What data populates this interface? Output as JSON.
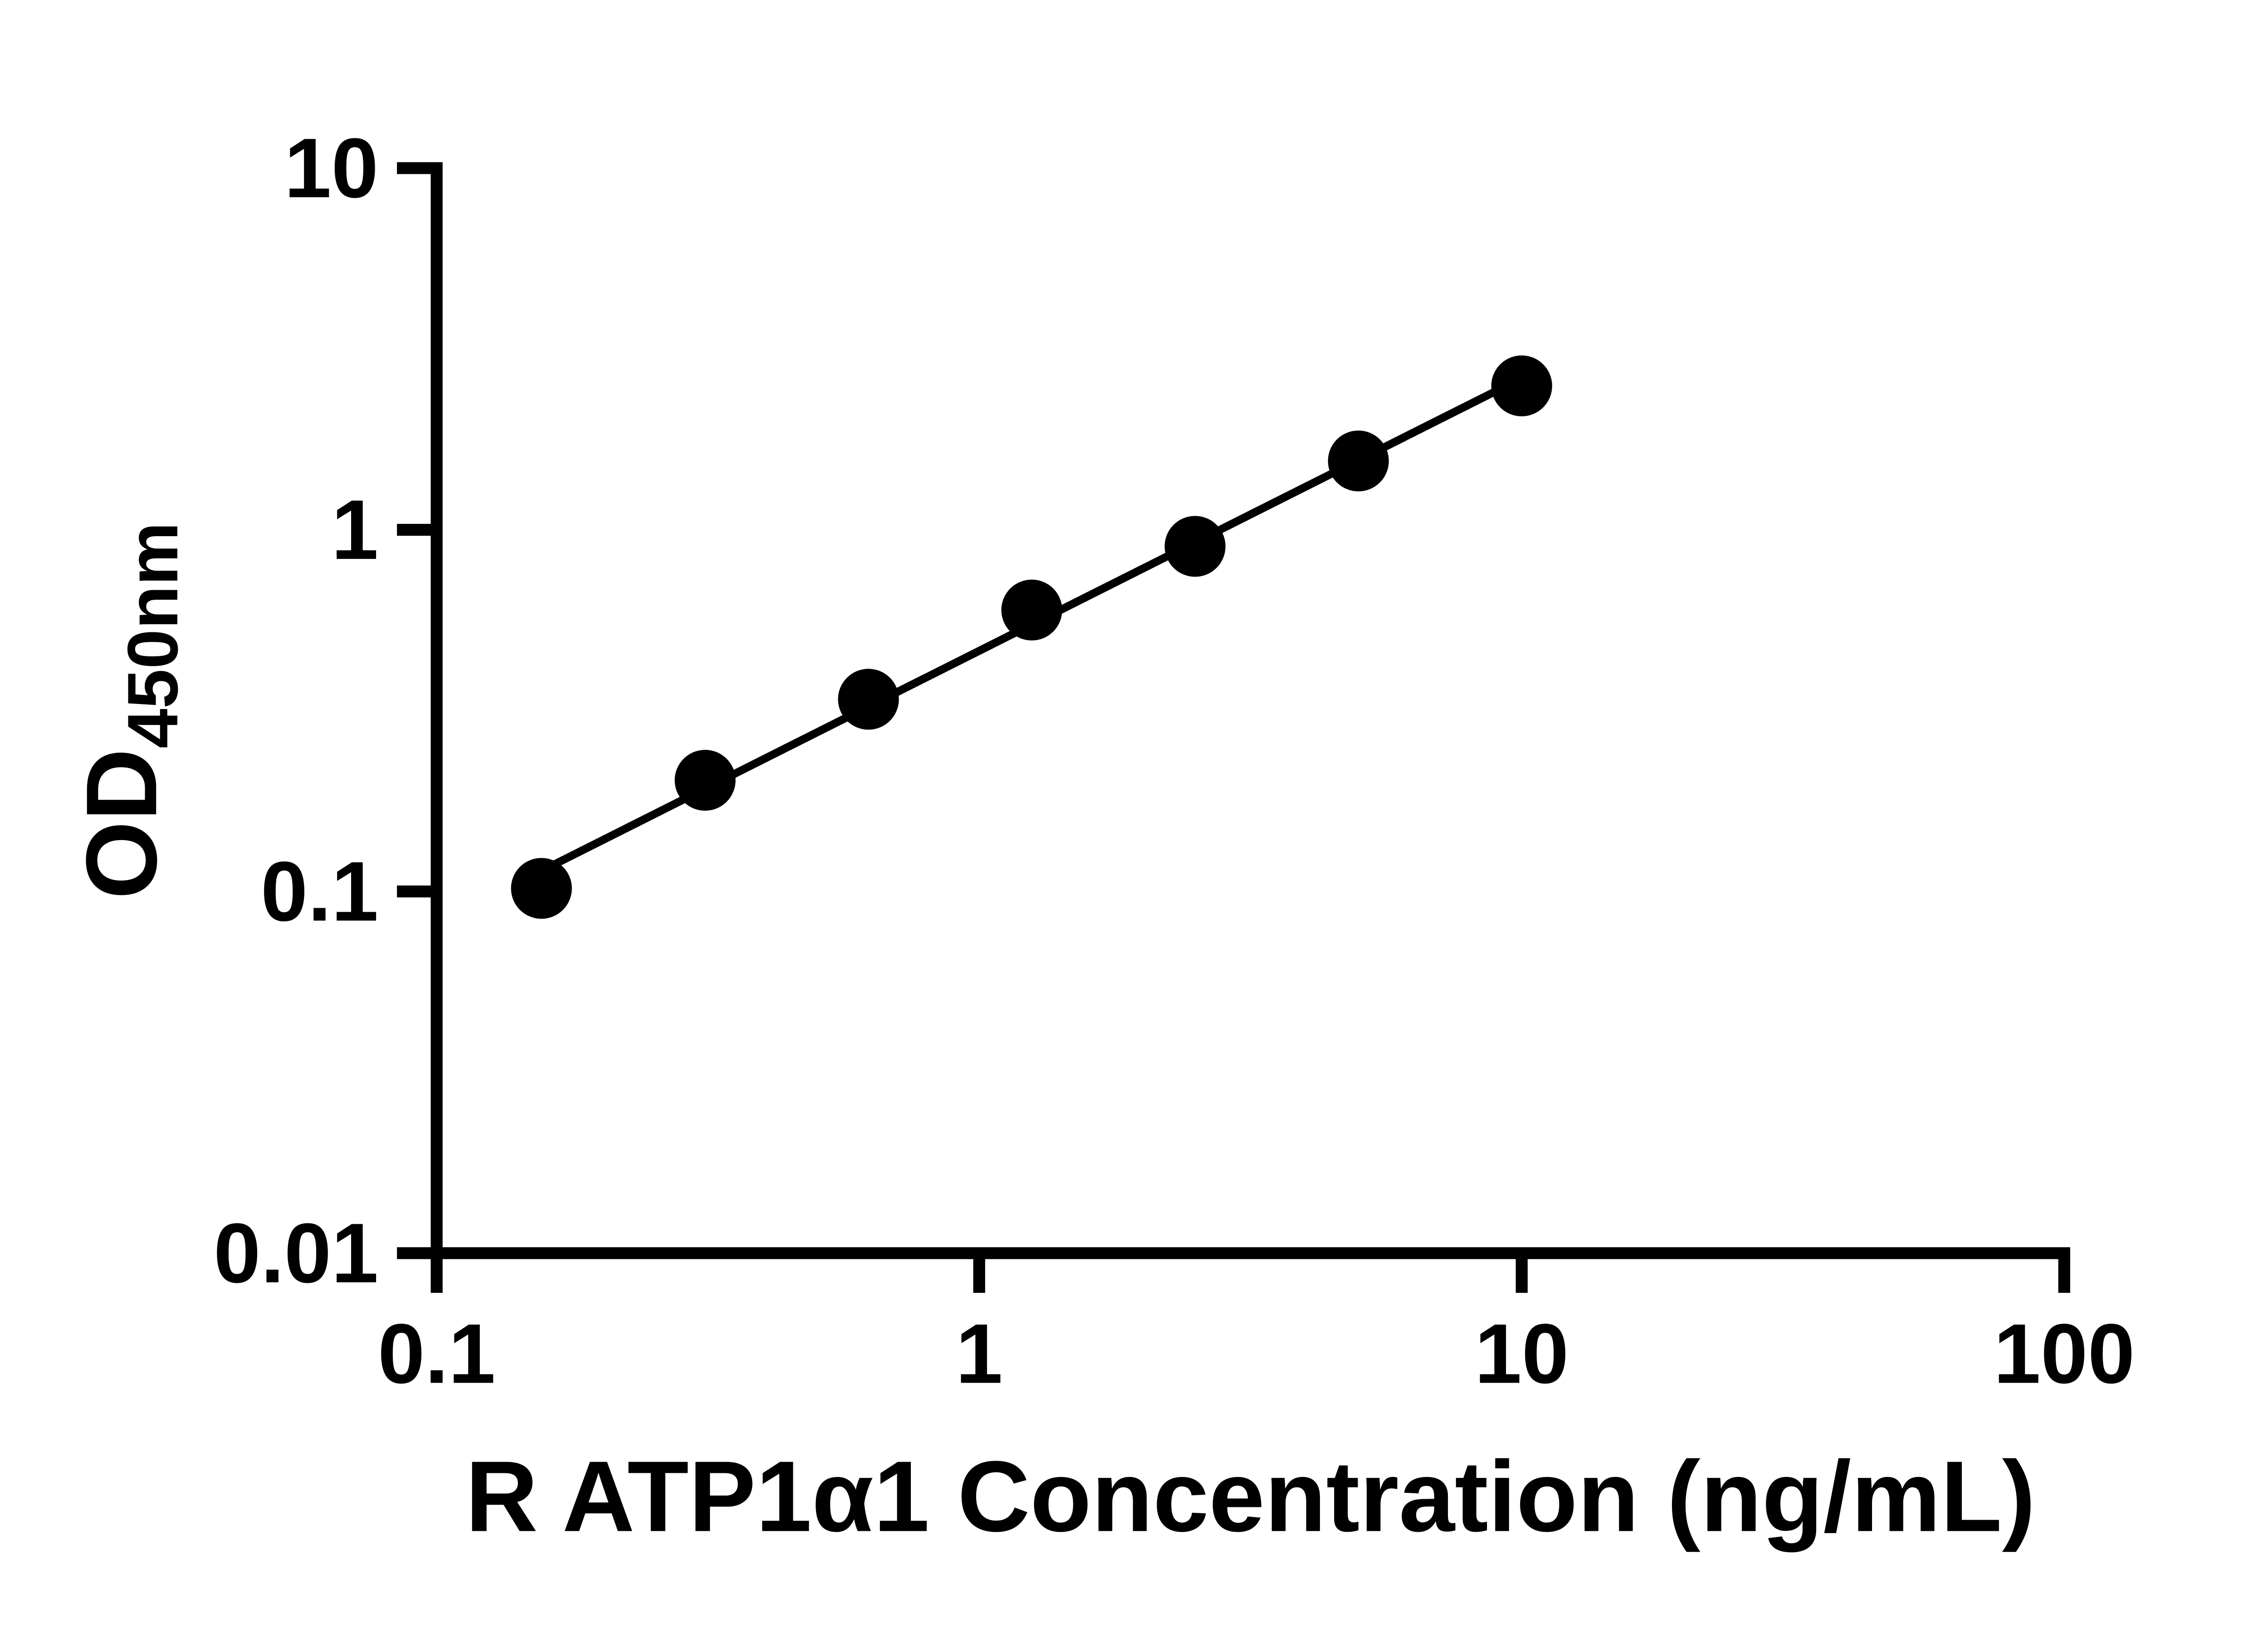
{
  "figure": {
    "background_color": "#ffffff",
    "axis_color": "#000000"
  },
  "chart_data": {
    "type": "scatter",
    "title": "",
    "xlabel": "R ATP1α1 Concentration (ng/mL)",
    "ylabel_main": "OD",
    "ylabel_subscript": "450nm",
    "xscale": "log",
    "yscale": "log",
    "xlim": [
      0.1,
      100
    ],
    "ylim": [
      0.01,
      10
    ],
    "xticks": [
      0.1,
      1,
      10,
      100
    ],
    "xtick_labels": [
      "0.1",
      "1",
      "10",
      "100"
    ],
    "yticks": [
      0.01,
      0.1,
      1,
      10
    ],
    "ytick_labels": [
      "0.01",
      "0.1",
      "1",
      "10"
    ],
    "grid": false,
    "legend": "none",
    "series": [
      {
        "x": [
          0.156,
          0.3125,
          0.625,
          1.25,
          2.5,
          5,
          10
        ],
        "y": [
          0.102,
          0.203,
          0.34,
          0.6,
          0.9,
          1.55,
          2.5
        ],
        "marker": "circle",
        "marker_color": "#000000",
        "trendline": "linear-loglog",
        "line_color": "#000000"
      }
    ]
  }
}
